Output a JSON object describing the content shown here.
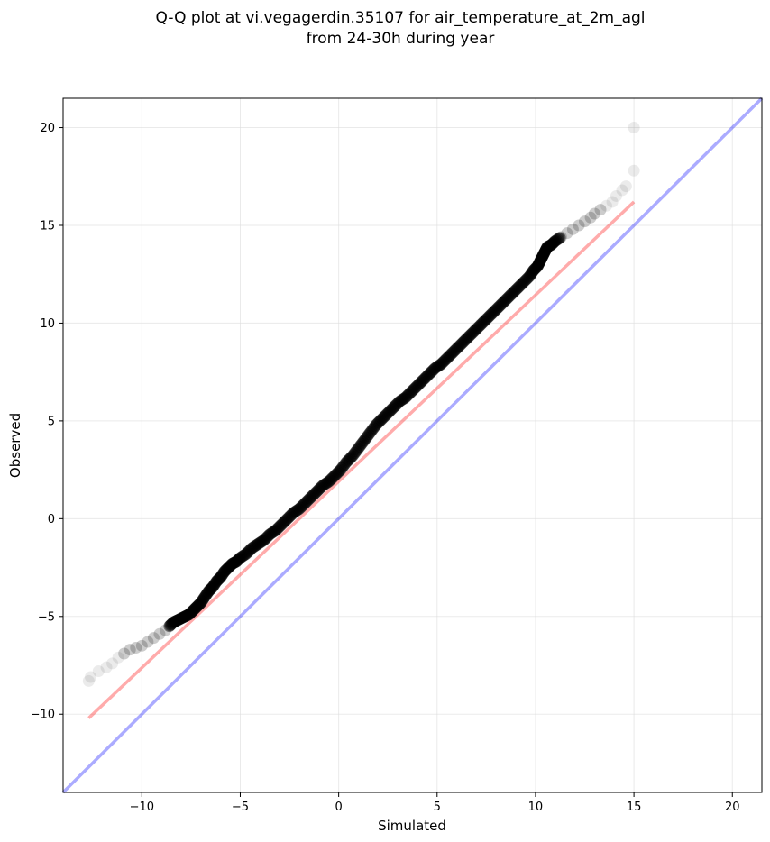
{
  "chart_data": {
    "type": "scatter",
    "title_line1": "Q-Q plot at vi.vegagerdin.35107 for air_temperature_at_2m_agl",
    "title_line2": "from 24-30h during year",
    "xlabel": "Simulated",
    "ylabel": "Observed",
    "xlim": [
      -14,
      21.5
    ],
    "ylim": [
      -14,
      21.5
    ],
    "x_ticks": [
      -10,
      -5,
      0,
      5,
      10,
      15,
      20
    ],
    "y_ticks": [
      -10,
      -5,
      0,
      5,
      10,
      15,
      20
    ],
    "x_tick_labels": [
      "−10",
      "−5",
      "0",
      "5",
      "10",
      "15",
      "20"
    ],
    "y_tick_labels": [
      "−10",
      "−5",
      "0",
      "5",
      "10",
      "15",
      "20"
    ],
    "grid": true,
    "colors": {
      "points": "#000000",
      "fit_line": "#ff0000",
      "identity_line": "#0000ff",
      "grid": "#dddddd"
    },
    "fit_line": {
      "x": [
        -12.7,
        15.0
      ],
      "y": [
        -10.2,
        16.2
      ]
    },
    "identity_line": {
      "x": [
        -14,
        21.5
      ],
      "y": [
        -14,
        21.5
      ]
    },
    "points": {
      "x": [
        -12.7,
        -12.6,
        -12.2,
        -11.8,
        -11.5,
        -11.2,
        -10.9,
        -10.6,
        -10.3,
        -10.0,
        -9.7,
        -9.4,
        -9.1,
        -8.8,
        -8.6,
        -8.4,
        -8.2,
        -8.0,
        -7.8,
        -7.6,
        -7.4,
        -7.2,
        -7.0,
        -6.8,
        -6.6,
        -6.4,
        -6.2,
        -6.0,
        -5.8,
        -5.6,
        -5.4,
        -5.2,
        -5.0,
        -4.7,
        -4.4,
        -4.1,
        -3.8,
        -3.5,
        -3.2,
        -2.9,
        -2.6,
        -2.3,
        -2.0,
        -1.7,
        -1.4,
        -1.1,
        -0.8,
        -0.5,
        -0.2,
        0.1,
        0.4,
        0.7,
        1.0,
        1.3,
        1.6,
        1.9,
        2.2,
        2.5,
        2.8,
        3.1,
        3.4,
        3.7,
        4.0,
        4.3,
        4.6,
        4.9,
        5.2,
        5.5,
        5.8,
        6.1,
        6.4,
        6.7,
        7.0,
        7.3,
        7.6,
        7.9,
        8.2,
        8.5,
        8.8,
        9.1,
        9.4,
        9.7,
        9.9,
        10.1,
        10.2,
        10.3,
        10.4,
        10.5,
        10.6,
        10.8,
        11.0,
        11.3,
        11.6,
        11.9,
        12.2,
        12.5,
        12.8,
        13.0,
        13.3,
        13.6,
        13.9,
        14.1,
        14.4,
        14.6,
        15.0
      ],
      "y": [
        -8.3,
        -8.1,
        -7.8,
        -7.6,
        -7.4,
        -7.1,
        -6.9,
        -6.7,
        -6.6,
        -6.5,
        -6.3,
        -6.1,
        -5.9,
        -5.7,
        -5.5,
        -5.3,
        -5.2,
        -5.1,
        -5.0,
        -4.9,
        -4.7,
        -4.5,
        -4.3,
        -4.0,
        -3.7,
        -3.5,
        -3.2,
        -3.0,
        -2.7,
        -2.5,
        -2.3,
        -2.2,
        -2.0,
        -1.8,
        -1.5,
        -1.3,
        -1.1,
        -0.8,
        -0.6,
        -0.3,
        0.0,
        0.3,
        0.5,
        0.8,
        1.1,
        1.4,
        1.7,
        1.9,
        2.2,
        2.5,
        2.9,
        3.2,
        3.6,
        4.0,
        4.4,
        4.8,
        5.1,
        5.4,
        5.7,
        6.0,
        6.2,
        6.5,
        6.8,
        7.1,
        7.4,
        7.7,
        7.9,
        8.2,
        8.5,
        8.8,
        9.1,
        9.4,
        9.7,
        10.0,
        10.3,
        10.6,
        10.9,
        11.2,
        11.5,
        11.8,
        12.1,
        12.4,
        12.7,
        12.9,
        13.1,
        13.3,
        13.5,
        13.7,
        13.9,
        14.0,
        14.2,
        14.4,
        14.6,
        14.8,
        15.0,
        15.2,
        15.4,
        15.6,
        15.8,
        16.0,
        16.2,
        16.5,
        16.8,
        17.0,
        17.8
      ],
      "extra": {
        "x": [
          15.0
        ],
        "y": [
          20.0
        ]
      }
    }
  }
}
